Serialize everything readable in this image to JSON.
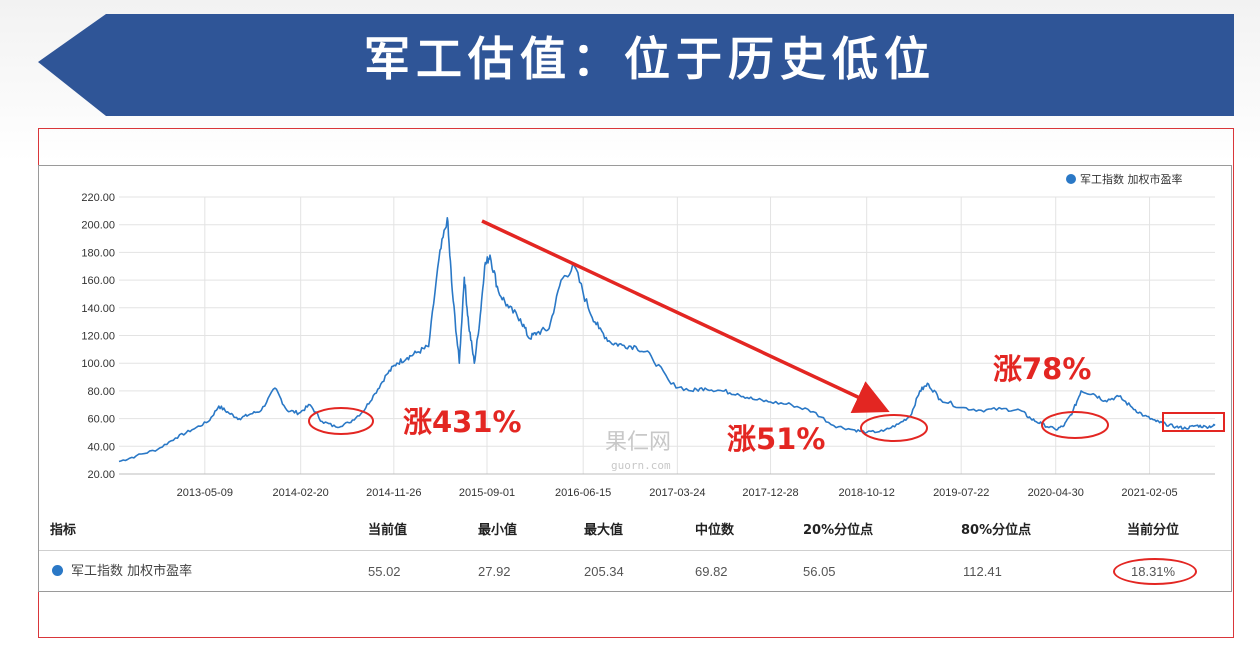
{
  "title": "军工估值：位于历史低位",
  "colors": {
    "banner": "#2f5597",
    "series": "#2a78c6",
    "annotation": "#e32622",
    "frame": "#d9363a"
  },
  "chart_data": {
    "type": "line",
    "legend": {
      "label": "军工指数 加权市盈率",
      "position": "top-right"
    },
    "ylim": [
      20,
      220
    ],
    "yticks": [
      "220.00",
      "200.00",
      "180.00",
      "160.00",
      "140.00",
      "120.00",
      "100.00",
      "80.00",
      "60.00",
      "40.00",
      "20.00"
    ],
    "xticks": [
      "2013-05-09",
      "2014-02-20",
      "2014-11-26",
      "2015-09-01",
      "2016-06-15",
      "2017-03-24",
      "2017-12-28",
      "2018-10-12",
      "2019-07-22",
      "2020-04-30",
      "2021-02-05"
    ],
    "xlim": [
      "2012-08-25",
      "2021-08-20"
    ],
    "grid": true,
    "series": [
      {
        "name": "军工指数 加权市盈率",
        "x": [
          "2012-08-25",
          "2012-10-15",
          "2012-12-20",
          "2013-02-10",
          "2013-04-01",
          "2013-05-20",
          "2013-06-20",
          "2013-07-20",
          "2013-08-20",
          "2013-09-20",
          "2013-10-25",
          "2013-12-05",
          "2014-01-10",
          "2014-02-15",
          "2014-03-20",
          "2014-04-25",
          "2014-06-05",
          "2014-07-15",
          "2014-08-25",
          "2014-09-30",
          "2014-11-05",
          "2014-12-05",
          "2015-01-05",
          "2015-02-05",
          "2015-03-10",
          "2015-04-10",
          "2015-05-05",
          "2015-05-20",
          "2015-06-10",
          "2015-06-25",
          "2015-07-08",
          "2015-07-25",
          "2015-08-10",
          "2015-08-25",
          "2015-09-10",
          "2015-10-05",
          "2015-11-05",
          "2015-12-10",
          "2016-01-05",
          "2016-01-29",
          "2016-03-05",
          "2016-04-10",
          "2016-05-20",
          "2016-06-30",
          "2016-08-01",
          "2016-09-05",
          "2016-10-10",
          "2016-11-20",
          "2017-01-05",
          "2017-03-05",
          "2017-05-05",
          "2017-06-15",
          "2017-08-05",
          "2017-09-20",
          "2017-11-05",
          "2017-12-28",
          "2018-03-01",
          "2018-05-05",
          "2018-07-05",
          "2018-09-01",
          "2018-10-12",
          "2018-12-01",
          "2019-01-15",
          "2019-02-20",
          "2019-03-20",
          "2019-04-15",
          "2019-05-20",
          "2019-07-22",
          "2019-09-20",
          "2019-11-20",
          "2020-01-15",
          "2020-02-15",
          "2020-03-20",
          "2020-04-30",
          "2020-05-25",
          "2020-06-20",
          "2020-07-15",
          "2020-08-20",
          "2020-09-25",
          "2020-11-05",
          "2020-12-15",
          "2021-01-20",
          "2021-02-25",
          "2021-03-25",
          "2021-04-25",
          "2021-05-25",
          "2021-06-25",
          "2021-07-25",
          "2021-08-20"
        ],
        "values": [
          29,
          33,
          38,
          46,
          52,
          58,
          69,
          64,
          60,
          63,
          66,
          82,
          66,
          64,
          70,
          58,
          54,
          57,
          65,
          78,
          92,
          100,
          104,
          108,
          112,
          175,
          205,
          152,
          100,
          162,
          128,
          100,
          130,
          170,
          178,
          152,
          140,
          132,
          118,
          122,
          125,
          160,
          170,
          140,
          125,
          115,
          113,
          112,
          105,
          85,
          80,
          82,
          80,
          78,
          74,
          72,
          70,
          65,
          55,
          52,
          50,
          51,
          56,
          62,
          80,
          85,
          74,
          68,
          66,
          67,
          66,
          60,
          56,
          52,
          55,
          65,
          80,
          78,
          73,
          76,
          68,
          62,
          58,
          56,
          54,
          53,
          55,
          54,
          55
        ]
      }
    ],
    "annotations": [
      "涨431%",
      "涨51%",
      "涨78%"
    ],
    "watermark": {
      "cn": "果仁网",
      "en": "guorn.com"
    }
  },
  "stats_table": {
    "headers": [
      "指标",
      "当前值",
      "最小值",
      "最大值",
      "中位数",
      "20%分位点",
      "80%分位点",
      "当前分位"
    ],
    "row": {
      "name": "军工指数 加权市盈率",
      "current": "55.02",
      "min": "27.92",
      "max": "205.34",
      "median": "69.82",
      "p20": "56.05",
      "p80": "112.41",
      "percentile": "18.31%"
    }
  }
}
